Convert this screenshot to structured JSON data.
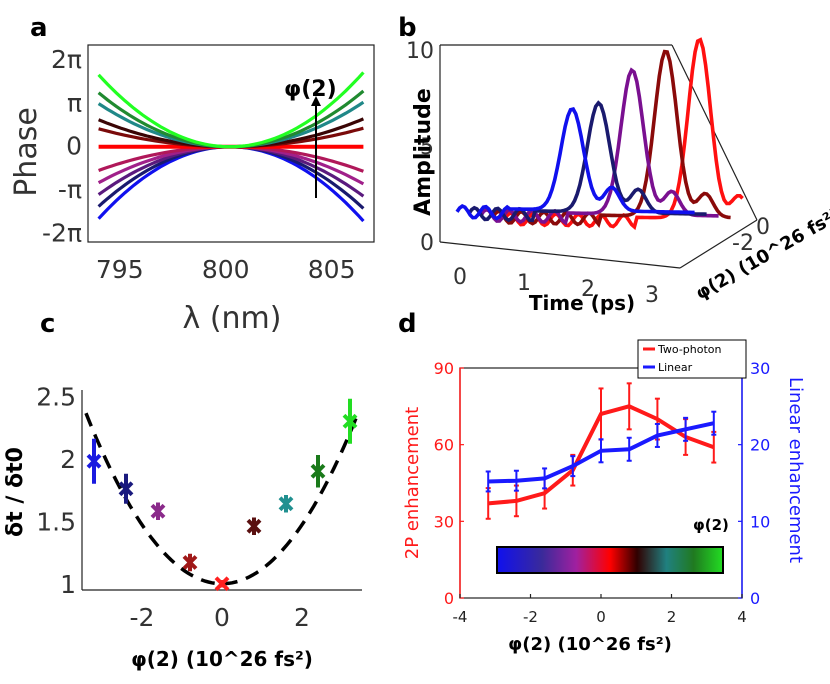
{
  "panels": {
    "a": "a",
    "b": "b",
    "c": "c",
    "d": "d"
  },
  "chart_data": [
    {
      "id": "a",
      "type": "line",
      "xlabel": "λ (nm)",
      "ylabel": "Phase",
      "x_ticks": [
        "795",
        "800",
        "805"
      ],
      "y_ticks": [
        "2π",
        "π",
        "0",
        "-π",
        "-2π"
      ],
      "xlim": [
        793.5,
        807
      ],
      "ylim": [
        -2.2,
        2.35
      ],
      "center": 800.2,
      "annotation": "φ(2)",
      "series": [
        {
          "name": "c=-2",
          "color": "#1010ee",
          "edge_value": -2.0
        },
        {
          "name": "c=-1.66",
          "color": "#1a1a6e",
          "edge_value": -1.66
        },
        {
          "name": "c=-1.33",
          "color": "#5a1a7e",
          "edge_value": -1.33
        },
        {
          "name": "c=-1.0",
          "color": "#a0208a",
          "edge_value": -1.0
        },
        {
          "name": "c=-0.66",
          "color": "#b0185a",
          "edge_value": -0.66
        },
        {
          "name": "c=0",
          "color": "#ff0000",
          "edge_value": 0
        },
        {
          "name": "c=0.5",
          "color": "#7a0a0a",
          "edge_value": 0.5
        },
        {
          "name": "c=0.75",
          "color": "#3a0505",
          "edge_value": 0.75
        },
        {
          "name": "c=1.2",
          "color": "#208888",
          "edge_value": 1.2
        },
        {
          "name": "c=1.5",
          "color": "#208a30",
          "edge_value": 1.5
        },
        {
          "name": "c=2.0",
          "color": "#22ff22",
          "edge_value": 2.0
        }
      ]
    },
    {
      "id": "b",
      "type": "line",
      "ylabel": "Amplitude",
      "xlabel": "Time (ps)",
      "zlabel": "φ(2) (10^26 fs²)",
      "y_ticks": [
        "10",
        "5",
        "0"
      ],
      "x_ticks": [
        "0",
        "1",
        "2",
        "3"
      ],
      "z_ticks": [
        "0",
        "-2"
      ],
      "series": [
        {
          "name": "φ=0",
          "color": "#ff1010",
          "peak_time": 2.7,
          "peak_amplitude": 10.4
        },
        {
          "name": "φ=-0.8",
          "color": "#8a0a0a",
          "peak_time": 2.4,
          "peak_amplitude": 9.7
        },
        {
          "name": "φ=-1.6",
          "color": "#7a1090",
          "peak_time": 2.1,
          "peak_amplitude": 8.6
        },
        {
          "name": "φ=-2.4",
          "color": "#1a1a6e",
          "peak_time": 1.8,
          "peak_amplitude": 6.8
        },
        {
          "name": "φ=-3.2",
          "color": "#1010ee",
          "peak_time": 1.6,
          "peak_amplitude": 6.4
        }
      ]
    },
    {
      "id": "c",
      "type": "scatter",
      "ylabel": "δt / δt0",
      "xlabel": "φ(2) (10^26 fs²)",
      "x_ticks": [
        "-2",
        "0",
        "2"
      ],
      "y_ticks": [
        "2.5",
        "2",
        "1.5",
        "1"
      ],
      "xlim": [
        -3.5,
        3.5
      ],
      "ylim": [
        0.95,
        2.55
      ],
      "points": [
        {
          "x": -3.2,
          "y": 1.98,
          "err": 0.18,
          "color": "#1a1ae0"
        },
        {
          "x": -2.4,
          "y": 1.76,
          "err": 0.12,
          "color": "#1a1a7e"
        },
        {
          "x": -1.6,
          "y": 1.58,
          "err": 0.07,
          "color": "#8a2a8a"
        },
        {
          "x": -0.8,
          "y": 1.17,
          "err": 0.07,
          "color": "#a01818"
        },
        {
          "x": 0.0,
          "y": 1.0,
          "err": 0.03,
          "color": "#ff2020"
        },
        {
          "x": 0.8,
          "y": 1.46,
          "err": 0.07,
          "color": "#5a1010"
        },
        {
          "x": 1.6,
          "y": 1.64,
          "err": 0.07,
          "color": "#209090"
        },
        {
          "x": 2.4,
          "y": 1.9,
          "err": 0.13,
          "color": "#1a7a1a"
        },
        {
          "x": 3.2,
          "y": 2.3,
          "err": 0.18,
          "color": "#22dd22"
        }
      ],
      "fit": {
        "a": 0.118,
        "x0": 0.0,
        "y0": 1.0
      }
    },
    {
      "id": "d",
      "type": "line",
      "ylabel_left": "2P enhancement",
      "ylabel_right": "Linear enhancement",
      "xlabel": "φ(2) (10^26 fs²)",
      "x_ticks": [
        "-4",
        "-2",
        "0",
        "2",
        "4"
      ],
      "y_ticks_left": [
        "90",
        "60",
        "30",
        "0"
      ],
      "y_ticks_right": [
        "30",
        "20",
        "10",
        "0"
      ],
      "xlim": [
        -4,
        4
      ],
      "ylim_left": [
        0,
        90
      ],
      "ylim_right": [
        0,
        30
      ],
      "legend": [
        "Two-photon",
        "Linear"
      ],
      "colorbar_label": "φ(2)",
      "series": [
        {
          "name": "Two-photon",
          "color": "#ff1a1a",
          "axis": "left",
          "x": [
            -3.2,
            -2.4,
            -1.6,
            -0.8,
            0.0,
            0.8,
            1.6,
            2.4,
            3.2
          ],
          "y": [
            37,
            38,
            41,
            50,
            72,
            75,
            70,
            63,
            59
          ],
          "err": [
            6,
            6,
            6,
            6,
            10,
            9,
            8,
            7,
            6
          ]
        },
        {
          "name": "Linear",
          "color": "#1a1aff",
          "axis": "right",
          "x": [
            -3.2,
            -2.4,
            -1.6,
            -0.8,
            0.0,
            0.8,
            1.6,
            2.4,
            3.2
          ],
          "y": [
            15.2,
            15.3,
            15.6,
            17.2,
            19.2,
            19.4,
            21.2,
            22.0,
            22.8
          ],
          "err": [
            1.3,
            1.3,
            1.3,
            1.3,
            1.5,
            1.5,
            1.5,
            1.5,
            1.5
          ]
        }
      ]
    }
  ]
}
